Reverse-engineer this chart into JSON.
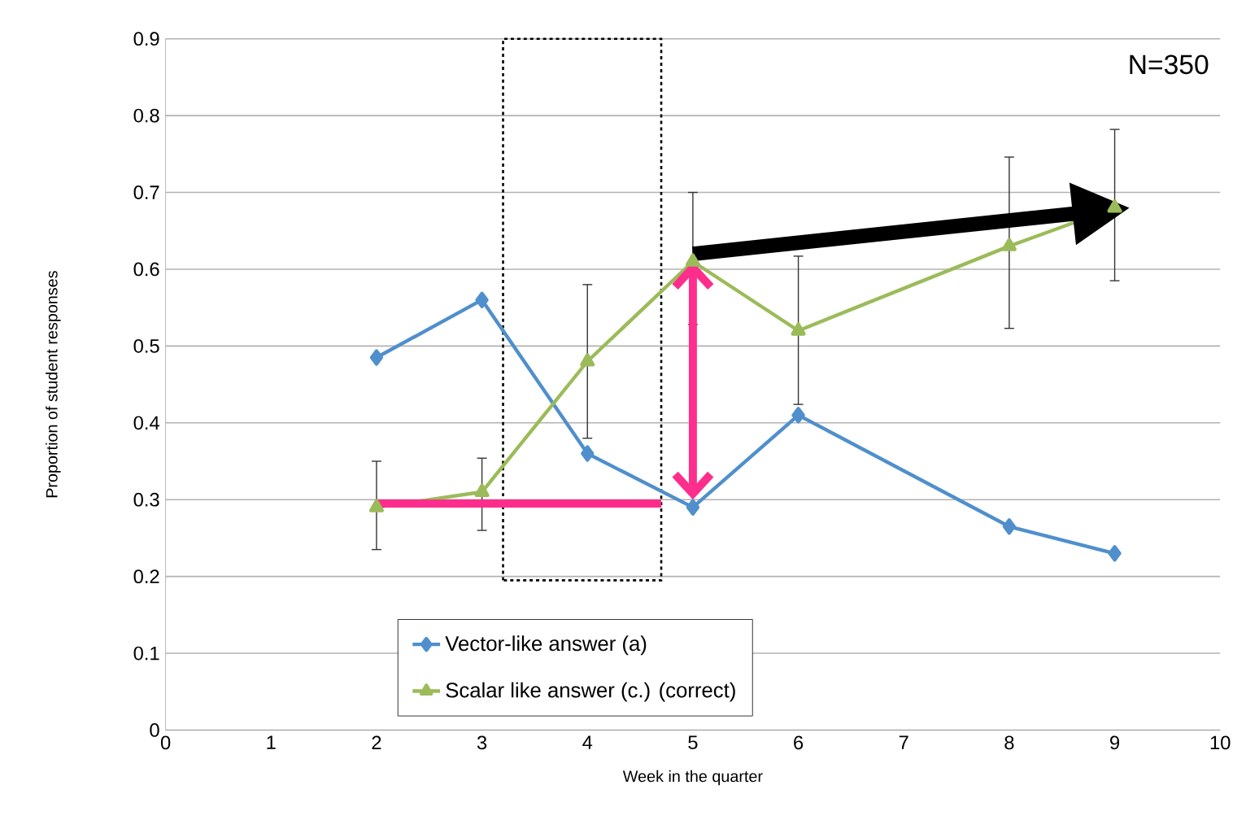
{
  "chart_data": {
    "type": "line",
    "xlabel": "Week in the quarter",
    "ylabel": "Proportion of student responses",
    "x": [
      2,
      3,
      4,
      5,
      6,
      8,
      9
    ],
    "series": [
      {
        "name": "Vector-like answer (a)",
        "color": "#4f8fcc",
        "marker": "diamond",
        "values": [
          0.485,
          0.56,
          0.36,
          0.29,
          0.41,
          0.265,
          0.23
        ]
      },
      {
        "name": "Scalar like answer (c.) (correct)",
        "color": "#9bbb59",
        "marker": "triangle",
        "values": [
          0.29,
          0.31,
          0.48,
          0.61,
          0.52,
          0.63,
          0.68
        ],
        "errors": [
          [
            0.235,
            0.35
          ],
          [
            0.26,
            0.354
          ],
          [
            0.38,
            0.58
          ],
          [
            0.528,
            0.7
          ],
          [
            0.424,
            0.617
          ],
          [
            0.523,
            0.746
          ],
          [
            0.585,
            0.782
          ]
        ]
      }
    ],
    "xlim": [
      0,
      10
    ],
    "xticks": [
      0,
      1,
      2,
      3,
      4,
      5,
      6,
      7,
      8,
      9,
      10
    ],
    "ylim": [
      0,
      0.9
    ],
    "yticks": [
      0,
      0.1,
      0.2,
      0.3,
      0.4,
      0.5,
      0.6,
      0.7,
      0.8,
      0.9
    ],
    "grid": "y",
    "legend": "bottom",
    "line_style": "solid",
    "annotations": [
      "N=350"
    ]
  }
}
